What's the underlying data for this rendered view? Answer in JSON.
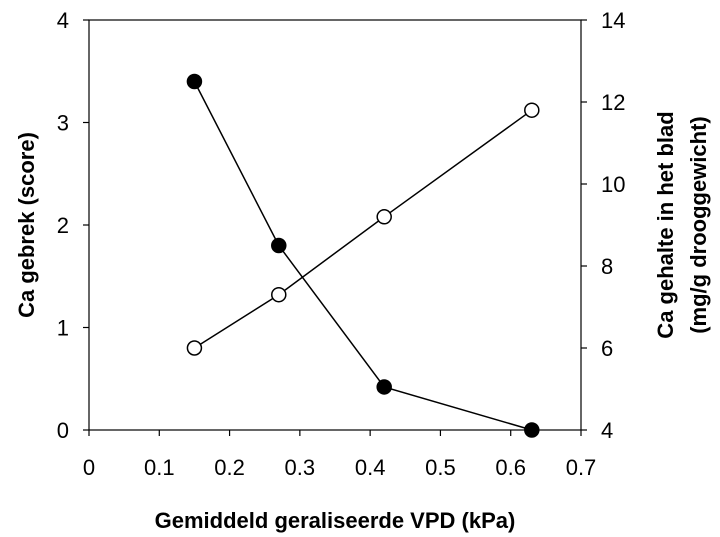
{
  "chart_data": {
    "type": "line",
    "title": "",
    "xlabel": "Gemiddeld geraliseerde VPD (kPa)",
    "ylabel_left": "Ca gebrek (score)",
    "ylabel_right_line1": "Ca gehalte in het blad",
    "ylabel_right_line2": "(mg/g drooggewicht)",
    "xlim": [
      0,
      0.7
    ],
    "ylim_left": [
      0,
      4
    ],
    "ylim_right": [
      4,
      14
    ],
    "x_ticks": [
      "0",
      "0.1",
      "0.2",
      "0.3",
      "0.4",
      "0.5",
      "0.6",
      "0.7"
    ],
    "y_left_ticks": [
      "0",
      "1",
      "2",
      "3",
      "4"
    ],
    "y_right_ticks": [
      "4",
      "6",
      "8",
      "10",
      "12",
      "14"
    ],
    "grid": false,
    "series": [
      {
        "axis": "left",
        "marker": "filled-circle",
        "color": "#000000",
        "x": [
          0.15,
          0.27,
          0.42,
          0.63
        ],
        "y": [
          3.4,
          1.8,
          0.42,
          0.0
        ]
      },
      {
        "axis": "right",
        "marker": "open-circle",
        "color": "#000000",
        "x": [
          0.15,
          0.27,
          0.42,
          0.63
        ],
        "y": [
          6.0,
          7.3,
          9.2,
          11.8
        ]
      }
    ]
  }
}
